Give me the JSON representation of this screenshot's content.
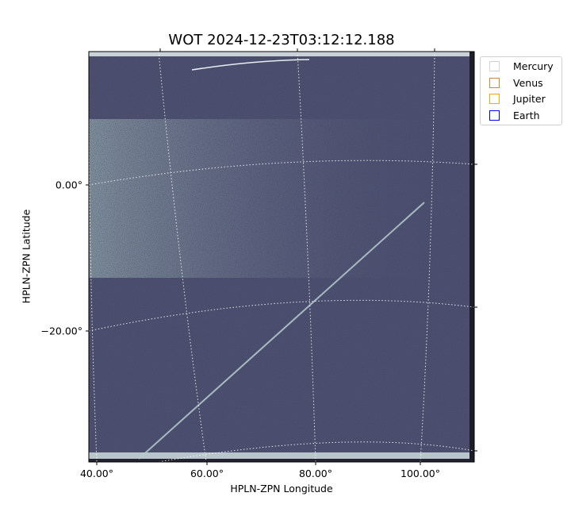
{
  "chart_data": {
    "type": "image",
    "title": "WOT 2024-12-23T03:12:12.188",
    "xlabel": "HPLN-ZPN Longitude",
    "ylabel": "HPLN-ZPN Latitude",
    "x_ticks": [
      "40.00°",
      "60.00°",
      "80.00°",
      "100.00°"
    ],
    "y_ticks": [
      "0.00°",
      "−20.00°"
    ],
    "grid": "dotted white coordinate grid",
    "colormap": "bone-like grayscale-blue",
    "legend": {
      "placement": "upper-right outside",
      "entries": [
        {
          "label": "Mercury",
          "color": "#d3d3d3"
        },
        {
          "label": "Venus",
          "color": "#cd853f"
        },
        {
          "label": "Jupiter",
          "color": "#ffa500"
        },
        {
          "label": "Earth",
          "color": "#0000ff"
        }
      ]
    }
  }
}
